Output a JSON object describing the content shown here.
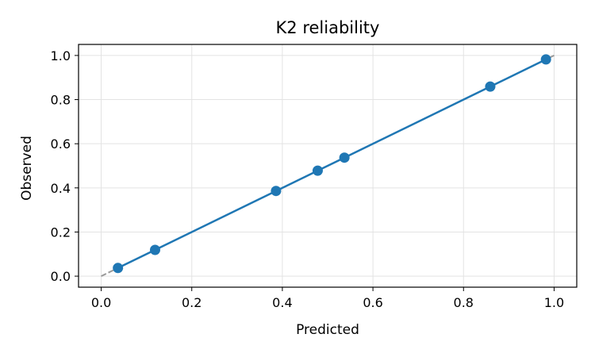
{
  "chart_data": {
    "type": "line",
    "title": "K2 reliability",
    "xlabel": "Predicted",
    "ylabel": "Observed",
    "xlim": [
      -0.05,
      1.05
    ],
    "ylim": [
      -0.05,
      1.05
    ],
    "xticks": [
      0.0,
      0.2,
      0.4,
      0.6,
      0.8,
      1.0
    ],
    "yticks": [
      0.0,
      0.2,
      0.4,
      0.6,
      0.8,
      1.0
    ],
    "xtick_labels": [
      "0.0",
      "0.2",
      "0.4",
      "0.6",
      "0.8",
      "1.0"
    ],
    "ytick_labels": [
      "0.0",
      "0.2",
      "0.4",
      "0.6",
      "0.8",
      "1.0"
    ],
    "grid": true,
    "reference_line": {
      "x": [
        0,
        1
      ],
      "y": [
        0,
        1
      ],
      "style": "dashed",
      "color": "#999999"
    },
    "series": [
      {
        "color": "#1f77b4",
        "marker": "circle",
        "x": [
          0.037,
          0.119,
          0.386,
          0.478,
          0.537,
          0.859,
          0.982
        ],
        "y": [
          0.037,
          0.119,
          0.386,
          0.478,
          0.537,
          0.859,
          0.982
        ]
      }
    ]
  }
}
